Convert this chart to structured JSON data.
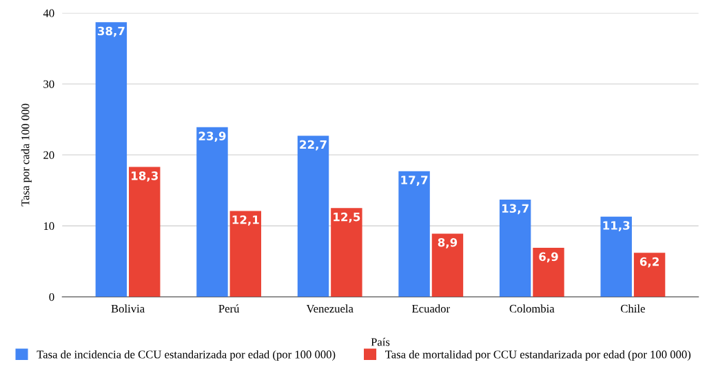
{
  "chart_data": {
    "type": "bar",
    "xlabel": "País",
    "ylabel": "Tasa por cada 100 000",
    "categories": [
      "Bolivia",
      "Perú",
      "Venezuela",
      "Ecuador",
      "Colombia",
      "Chile"
    ],
    "series": [
      {
        "name": "Tasa de incidencia de CCU estandarizada por edad (por 100 000)",
        "color": "#4285f4",
        "values": [
          38.7,
          23.9,
          22.7,
          17.7,
          13.7,
          11.3
        ],
        "value_labels": [
          "38,7",
          "23,9",
          "22,7",
          "17,7",
          "13,7",
          "11,3"
        ]
      },
      {
        "name": "Tasa de mortalidad por CCU estandarizada por edad (por 100 000)",
        "color": "#ea4335",
        "values": [
          18.3,
          12.1,
          12.5,
          8.9,
          6.9,
          6.2
        ],
        "value_labels": [
          "18,3",
          "12,1",
          "12,5",
          "8,9",
          "6,9",
          "6,2"
        ]
      }
    ],
    "ylim": [
      0,
      40
    ],
    "yticks": [
      0,
      10,
      20,
      30,
      40
    ],
    "grid": "y",
    "legend": "bottom"
  }
}
